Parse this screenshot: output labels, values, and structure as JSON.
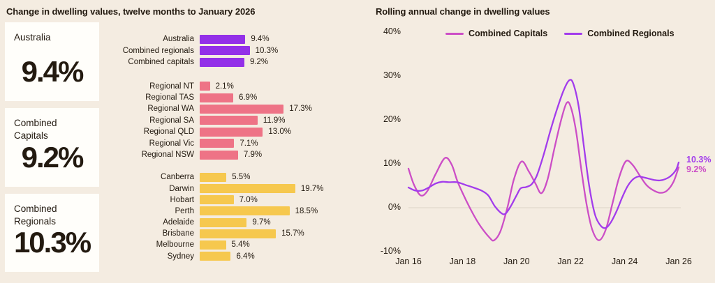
{
  "left_panel": {
    "title": "Change in dwelling values, twelve months to January 2026",
    "stat_cards": [
      {
        "label": "Australia",
        "value": "9.4%"
      },
      {
        "label": "Combined Capitals",
        "value": "9.2%"
      },
      {
        "label": "Combined Regionals",
        "value": "10.3%"
      }
    ]
  },
  "colors": {
    "background": "#f4ece1",
    "card": "#fffefa",
    "text": "#231a10",
    "national_bar": "#9330e8",
    "regional_bar": "#ee7386",
    "capital_bar": "#f6c84e",
    "capitals_line": "#cc4ec6",
    "regionals_line": "#a23cec",
    "gridline": "#ddd4c7"
  },
  "chart_data": [
    {
      "type": "bar",
      "orientation": "horizontal",
      "title": "Change in dwelling values, twelve months to January 2026",
      "unit": "%",
      "xlim": [
        0,
        20
      ],
      "groups": [
        {
          "name": "national",
          "color": "#9330e8",
          "bars": [
            {
              "label": "Australia",
              "value": 9.4,
              "display": "9.4%"
            },
            {
              "label": "Combined regionals",
              "value": 10.3,
              "display": "10.3%"
            },
            {
              "label": "Combined capitals",
              "value": 9.2,
              "display": "9.2%"
            }
          ]
        },
        {
          "name": "regional",
          "color": "#ee7386",
          "bars": [
            {
              "label": "Regional NT",
              "value": 2.1,
              "display": "2.1%"
            },
            {
              "label": "Regional TAS",
              "value": 6.9,
              "display": "6.9%"
            },
            {
              "label": "Regional WA",
              "value": 17.3,
              "display": "17.3%"
            },
            {
              "label": "Regional SA",
              "value": 11.9,
              "display": "11.9%"
            },
            {
              "label": "Regional QLD",
              "value": 13.0,
              "display": "13.0%"
            },
            {
              "label": "Regional Vic",
              "value": 7.1,
              "display": "7.1%"
            },
            {
              "label": "Regional NSW",
              "value": 7.9,
              "display": "7.9%"
            }
          ]
        },
        {
          "name": "capitals",
          "color": "#f6c84e",
          "bars": [
            {
              "label": "Canberra",
              "value": 5.5,
              "display": "5.5%"
            },
            {
              "label": "Darwin",
              "value": 19.7,
              "display": "19.7%"
            },
            {
              "label": "Hobart",
              "value": 7.0,
              "display": "7.0%"
            },
            {
              "label": "Perth",
              "value": 18.5,
              "display": "18.5%"
            },
            {
              "label": "Adelaide",
              "value": 9.7,
              "display": "9.7%"
            },
            {
              "label": "Brisbane",
              "value": 15.7,
              "display": "15.7%"
            },
            {
              "label": "Melbourne",
              "value": 5.4,
              "display": "5.4%"
            },
            {
              "label": "Sydney",
              "value": 6.4,
              "display": "6.4%"
            }
          ]
        }
      ]
    },
    {
      "type": "line",
      "title": "Rolling annual change in dwelling values",
      "ylim": [
        -10,
        40
      ],
      "grid": "zero-line-only",
      "legend_position": "top",
      "yticks": [
        {
          "value": 40,
          "label": "40%"
        },
        {
          "value": 30,
          "label": "30%"
        },
        {
          "value": 20,
          "label": "20%"
        },
        {
          "value": 10,
          "label": "10%"
        },
        {
          "value": 0,
          "label": "0%"
        },
        {
          "value": -10,
          "label": "-10%"
        }
      ],
      "xticks": [
        {
          "value": 2016,
          "label": "Jan 16"
        },
        {
          "value": 2018,
          "label": "Jan 18"
        },
        {
          "value": 2020,
          "label": "Jan 20"
        },
        {
          "value": 2022,
          "label": "Jan 22"
        },
        {
          "value": 2024,
          "label": "Jan 24"
        },
        {
          "value": 2026,
          "label": "Jan 26"
        }
      ],
      "gridlines": [
        0
      ],
      "series": [
        {
          "name": "Combined Capitals",
          "color": "#cc4ec6",
          "end_label": "9.2%",
          "points": [
            [
              2016.0,
              8.9
            ],
            [
              2016.2,
              5.3
            ],
            [
              2016.45,
              2.8
            ],
            [
              2016.7,
              3.8
            ],
            [
              2017.0,
              7.6
            ],
            [
              2017.35,
              11.3
            ],
            [
              2017.6,
              9.8
            ],
            [
              2017.8,
              6.2
            ],
            [
              2018.0,
              3.4
            ],
            [
              2018.27,
              0.0
            ],
            [
              2018.6,
              -3.6
            ],
            [
              2019.0,
              -6.8
            ],
            [
              2019.17,
              -7.4
            ],
            [
              2019.4,
              -5.4
            ],
            [
              2019.66,
              0.0
            ],
            [
              2019.9,
              6.4
            ],
            [
              2020.18,
              10.5
            ],
            [
              2020.45,
              8.3
            ],
            [
              2020.7,
              5.5
            ],
            [
              2020.92,
              3.3
            ],
            [
              2021.15,
              6.5
            ],
            [
              2021.4,
              13.5
            ],
            [
              2021.65,
              20.0
            ],
            [
              2021.85,
              23.8
            ],
            [
              2022.0,
              23.0
            ],
            [
              2022.2,
              17.5
            ],
            [
              2022.4,
              8.5
            ],
            [
              2022.6,
              0.5
            ],
            [
              2022.8,
              -5.0
            ],
            [
              2023.05,
              -7.4
            ],
            [
              2023.3,
              -5.0
            ],
            [
              2023.55,
              1.0
            ],
            [
              2023.8,
              7.0
            ],
            [
              2024.05,
              10.6
            ],
            [
              2024.3,
              9.7
            ],
            [
              2024.55,
              7.4
            ],
            [
              2024.8,
              5.2
            ],
            [
              2025.05,
              4.0
            ],
            [
              2025.3,
              3.4
            ],
            [
              2025.55,
              3.8
            ],
            [
              2025.8,
              5.8
            ],
            [
              2026.0,
              9.2
            ]
          ]
        },
        {
          "name": "Combined Regionals",
          "color": "#a23cec",
          "end_label": "10.3%",
          "points": [
            [
              2016.0,
              4.6
            ],
            [
              2016.25,
              3.9
            ],
            [
              2016.5,
              3.9
            ],
            [
              2016.75,
              4.6
            ],
            [
              2017.0,
              5.5
            ],
            [
              2017.25,
              5.9
            ],
            [
              2017.5,
              5.8
            ],
            [
              2017.8,
              5.8
            ],
            [
              2018.1,
              5.2
            ],
            [
              2018.4,
              4.6
            ],
            [
              2018.7,
              3.9
            ],
            [
              2018.95,
              2.8
            ],
            [
              2019.2,
              0.3
            ],
            [
              2019.45,
              -1.3
            ],
            [
              2019.6,
              -1.3
            ],
            [
              2019.8,
              0.5
            ],
            [
              2020.0,
              2.8
            ],
            [
              2020.15,
              4.4
            ],
            [
              2020.35,
              4.7
            ],
            [
              2020.55,
              5.3
            ],
            [
              2020.75,
              7.3
            ],
            [
              2021.0,
              12.0
            ],
            [
              2021.25,
              17.5
            ],
            [
              2021.5,
              22.5
            ],
            [
              2021.75,
              26.8
            ],
            [
              2021.95,
              29.0
            ],
            [
              2022.1,
              28.2
            ],
            [
              2022.3,
              23.0
            ],
            [
              2022.5,
              13.5
            ],
            [
              2022.7,
              4.5
            ],
            [
              2022.9,
              -1.5
            ],
            [
              2023.1,
              -4.0
            ],
            [
              2023.3,
              -4.6
            ],
            [
              2023.5,
              -3.2
            ],
            [
              2023.7,
              -0.8
            ],
            [
              2023.9,
              2.2
            ],
            [
              2024.1,
              4.8
            ],
            [
              2024.3,
              6.4
            ],
            [
              2024.5,
              7.1
            ],
            [
              2024.7,
              6.9
            ],
            [
              2024.9,
              6.6
            ],
            [
              2025.1,
              6.3
            ],
            [
              2025.3,
              6.2
            ],
            [
              2025.5,
              6.5
            ],
            [
              2025.7,
              7.2
            ],
            [
              2025.9,
              8.6
            ],
            [
              2026.0,
              10.3
            ]
          ]
        }
      ]
    }
  ]
}
